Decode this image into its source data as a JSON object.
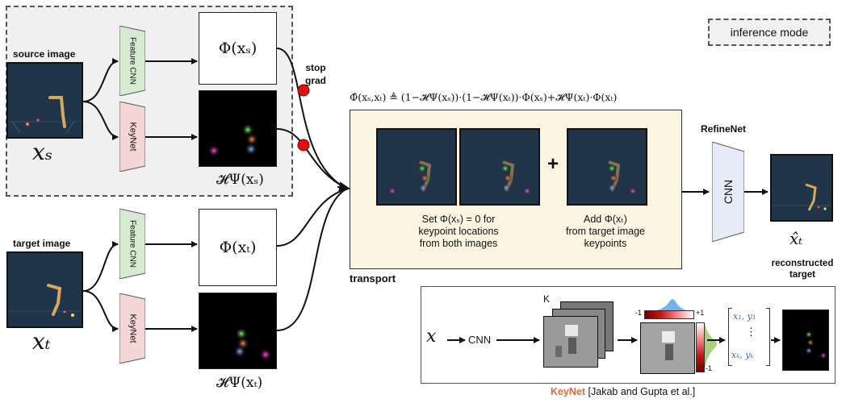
{
  "inference_mode": "inference mode",
  "source_image_label": "source image",
  "target_image_label": "target image",
  "feature_cnn_label": "Feature CNN",
  "keynet_label": "KeyNet",
  "phi_xs": "Φ(xₛ)",
  "phi_xt": "Φ(xₜ)",
  "heat_xs": "𝓗Ψ(xₛ)",
  "heat_xt": "𝓗Ψ(xₜ)",
  "x_s": "xₛ",
  "x_t": "xₜ",
  "stop_grad": "stop\ngrad",
  "transport_formula": "Φ̂(xₛ,xₜ) ≜ (1−𝓗Ψ(xₛ))·(1−𝓗Ψ(xₜ))·Φ(xₛ)+𝓗Ψ(xₜ)·Φ(xₜ)",
  "plus": "+",
  "set_text": "Set Φ(xₛ) = 0 for\nkeypoint locations\nfrom both images",
  "add_text": "Add  Φ(xₜ)\nfrom target image\nkeypoints",
  "transport_label": "transport",
  "refinenet_label": "RefineNet",
  "cnn_label": "CNN",
  "xhat_t": "x̂ₜ",
  "reconstructed_target": "reconstructed\ntarget",
  "inset": {
    "x": "x",
    "cnn": "CNN",
    "k": "K",
    "scale_minus": "-1",
    "scale_plus": "+1",
    "side_minus": "-1",
    "vec_top": "x₁, y₁",
    "vec_dots": "⋮",
    "vec_bottom": "xₖ, yₖ"
  },
  "caption_keynet": "KeyNet",
  "caption_ref": " [Jakab and Gupta et al.]",
  "colors": {
    "feature_cnn": "#d6ebd1",
    "keynet": "#f6d5d5",
    "refinenet": "#e6ebf7",
    "transport_bg": "#fcf5e1",
    "stop_dot": "#e01010",
    "caption_accent": "#e06a3c"
  }
}
